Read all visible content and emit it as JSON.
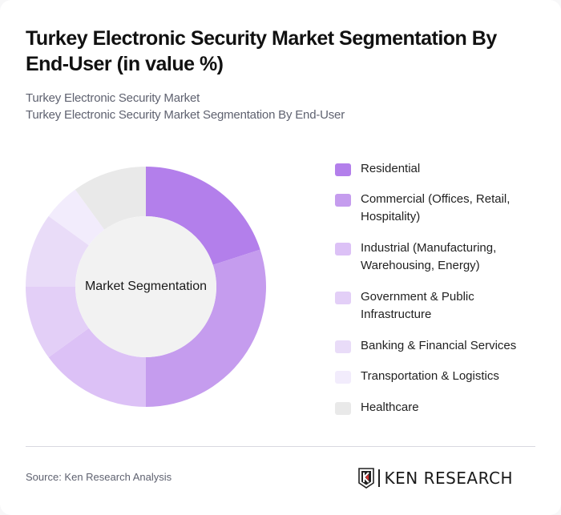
{
  "header": {
    "title": "Turkey Electronic Security Market Segmentation By End-User (in value %)",
    "subtitle_line1": "Turkey Electronic Security Market",
    "subtitle_line2": "Turkey Electronic Security Market Segmentation By End-User"
  },
  "chart_data": {
    "type": "pie",
    "variant": "donut",
    "title": "Turkey Electronic Security Market Segmentation By End-User (in value %)",
    "center_label": "Market Segmentation",
    "categories": [
      "Residential",
      "Commercial (Offices, Retail, Hospitality)",
      "Industrial (Manufacturing, Warehousing, Energy)",
      "Government & Public Infrastructure",
      "Banking & Financial Services",
      "Transportation & Logistics",
      "Healthcare"
    ],
    "values": [
      20,
      30,
      15,
      10,
      10,
      5,
      10
    ],
    "colors": [
      "#b37feb",
      "#c59cee",
      "#dcc1f6",
      "#e3cff7",
      "#e9dcf8",
      "#f2ecfc",
      "#e9e9e9"
    ],
    "legend_position": "right",
    "start_angle": "top, clockwise"
  },
  "legend": {
    "items": [
      {
        "label_line1": "Residential",
        "label_line2": "",
        "color": "#b37feb"
      },
      {
        "label_line1": "Commercial (Offices, Retail,",
        "label_line2": "Hospitality)",
        "color": "#c59cee"
      },
      {
        "label_line1": "Industrial (Manufacturing,",
        "label_line2": "Warehousing, Energy)",
        "color": "#dcc1f6"
      },
      {
        "label_line1": "Government & Public",
        "label_line2": "Infrastructure",
        "color": "#e3cff7"
      },
      {
        "label_line1": "Banking & Financial Services",
        "label_line2": "",
        "color": "#e9dcf8"
      },
      {
        "label_line1": "Transportation & Logistics",
        "label_line2": "",
        "color": "#f2ecfc"
      },
      {
        "label_line1": "Healthcare",
        "label_line2": "",
        "color": "#e9e9e9"
      }
    ]
  },
  "footer": {
    "source": "Source: Ken Research Analysis",
    "logo_text": "KEN RESEARCH"
  }
}
